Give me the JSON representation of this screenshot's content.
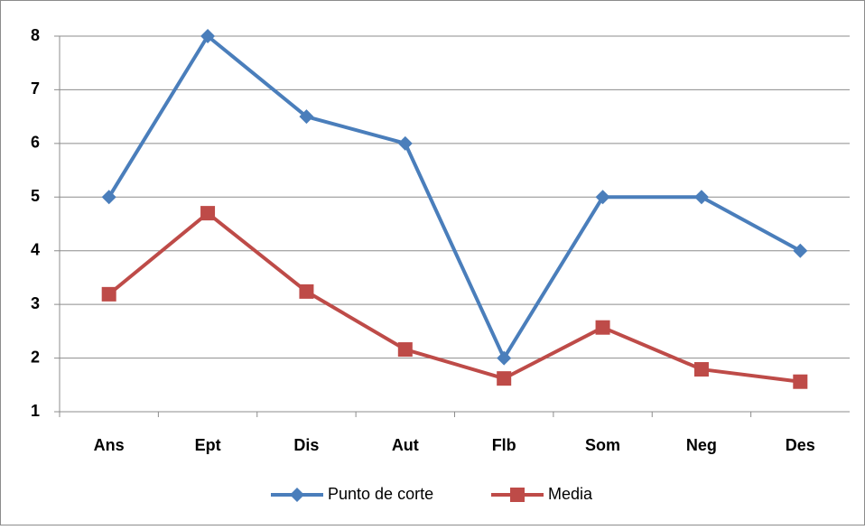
{
  "chart_data": {
    "type": "line",
    "categories": [
      "Ans",
      "Ept",
      "Dis",
      "Aut",
      "Flb",
      "Som",
      "Neg",
      "Des"
    ],
    "series": [
      {
        "name": "Punto de corte",
        "color": "#4a7ebb",
        "marker": "diamond",
        "values": [
          5,
          8,
          6.5,
          6,
          2,
          5,
          5,
          4
        ]
      },
      {
        "name": "Media",
        "color": "#be4b48",
        "marker": "square",
        "values": [
          3.19,
          4.7,
          3.24,
          2.16,
          1.62,
          2.57,
          1.79,
          1.56
        ]
      }
    ],
    "ylim": [
      1,
      8
    ],
    "yticks": [
      1,
      2,
      3,
      4,
      5,
      6,
      7,
      8
    ],
    "grid": true,
    "legend": "bottom"
  }
}
